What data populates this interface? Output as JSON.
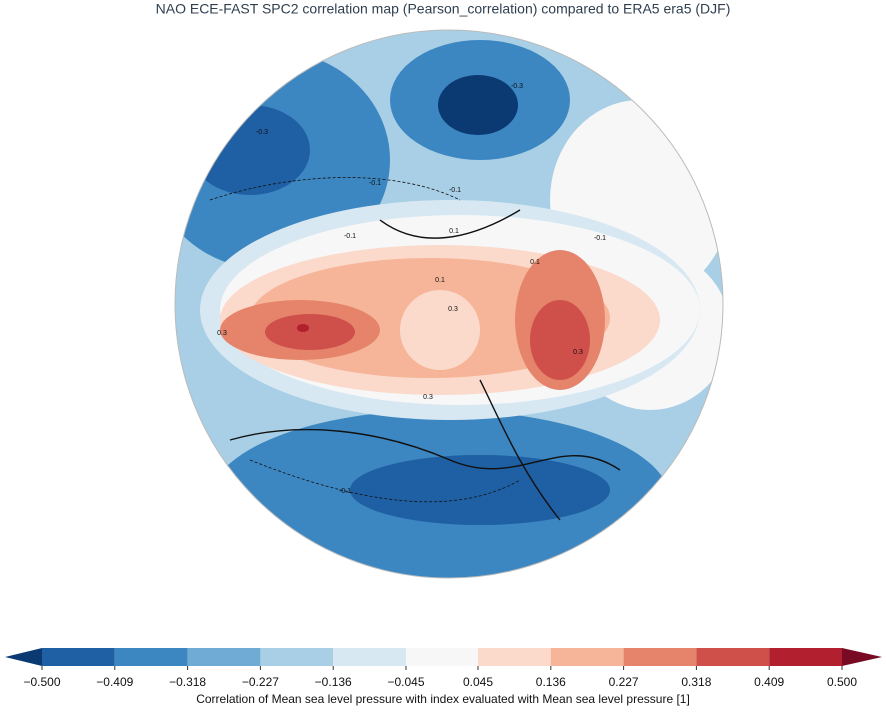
{
  "title": "NAO ECE-FAST SPC2 correlation map (Pearson_correlation) compared to ERA5 era5 (DJF)",
  "map": {
    "type": "contour-map",
    "contour_labels": [
      -0.3,
      -0.3,
      -0.1,
      -0.1,
      -0.1,
      0.1,
      0.1,
      0.1,
      0.3,
      0.3,
      0.3,
      0.3,
      -0.1,
      -0.1
    ]
  },
  "colorbar": {
    "ticks": [
      {
        "value": -0.5,
        "label": "−0.500"
      },
      {
        "value": -0.409,
        "label": "−0.409"
      },
      {
        "value": -0.318,
        "label": "−0.318"
      },
      {
        "value": -0.227,
        "label": "−0.227"
      },
      {
        "value": -0.136,
        "label": "−0.136"
      },
      {
        "value": -0.045,
        "label": "−0.045"
      },
      {
        "value": 0.045,
        "label": "0.045"
      },
      {
        "value": 0.136,
        "label": "0.136"
      },
      {
        "value": 0.227,
        "label": "0.227"
      },
      {
        "value": 0.318,
        "label": "0.318"
      },
      {
        "value": 0.409,
        "label": "0.409"
      },
      {
        "value": 0.5,
        "label": "0.500"
      }
    ],
    "colors": [
      "#1f5fa3",
      "#3c87c2",
      "#6fabd5",
      "#a8cfe5",
      "#d7e8f2",
      "#f7f7f7",
      "#fbdacb",
      "#f6b598",
      "#e5846b",
      "#cf4f4b",
      "#b2202f"
    ],
    "extend_colors": [
      "#0b3a72",
      "#790a23"
    ],
    "label": "Correlation of Mean sea level pressure with index evaluated with Mean sea level pressure [1]"
  }
}
